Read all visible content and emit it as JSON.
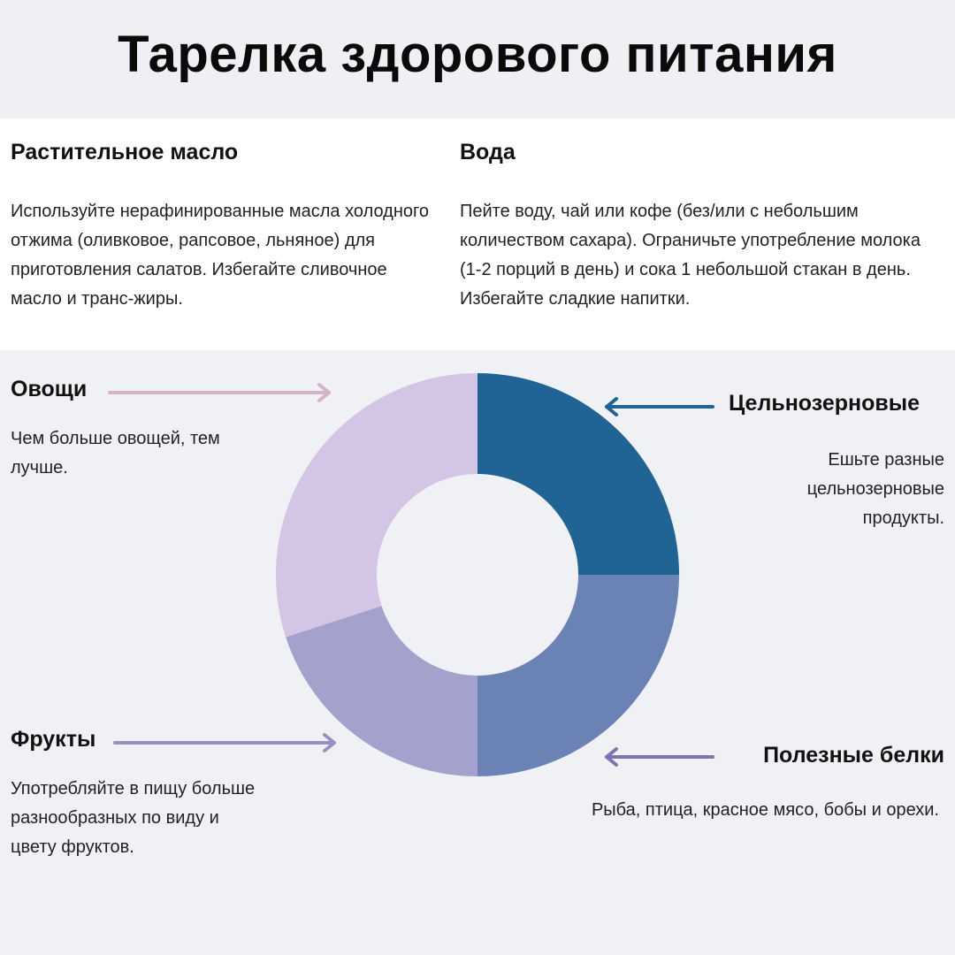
{
  "title": "Тарелка здорового питания",
  "sections": {
    "oil": {
      "heading": "Растительное масло",
      "text": "Используйте нерафинированные масла холодного отжима (оливковое, рапсовое, льняное) для приготовления салатов. Избегайте сливочное масло и транс-жиры."
    },
    "water": {
      "heading": "Вода",
      "text": "Пейте воду, чай или кофе (без/или с небольшим количеством сахара). Ограничьте употребление молока (1-2 порций в день) и сока 1 небольшой стакан в день. Избегайте сладкие напитки."
    },
    "vegetables": {
      "heading": "Овощи",
      "text": "Чем больше овощей, тем лучше."
    },
    "grains": {
      "heading": "Цельнозерновые",
      "text": "Ешьте разные цельнозерновые продукты."
    },
    "fruits": {
      "heading": "Фрукты",
      "text": "Употребляйте в пищу больше разнообразных по виду и цвету фруктов."
    },
    "proteins": {
      "heading": "Полезные белки",
      "text": "Рыба, птица, красное мясо, бобы и орехи."
    }
  },
  "chart_data": {
    "type": "pie",
    "variant": "donut",
    "slices": [
      {
        "label": "Цельнозерновые",
        "value": 25,
        "color": "#1f6494"
      },
      {
        "label": "Полезные белки",
        "value": 25,
        "color": "#6a82b4"
      },
      {
        "label": "Фрукты",
        "value": 20,
        "color": "#a3a2cd"
      },
      {
        "label": "Овощи",
        "value": 30,
        "color": "#d4c5e4"
      }
    ]
  },
  "colors": {
    "vegetables_arrow": "#d4b4c6",
    "grains_arrow": "#1f6494",
    "fruits_arrow": "#9d8fc4",
    "proteins_arrow": "#7f73b0"
  }
}
